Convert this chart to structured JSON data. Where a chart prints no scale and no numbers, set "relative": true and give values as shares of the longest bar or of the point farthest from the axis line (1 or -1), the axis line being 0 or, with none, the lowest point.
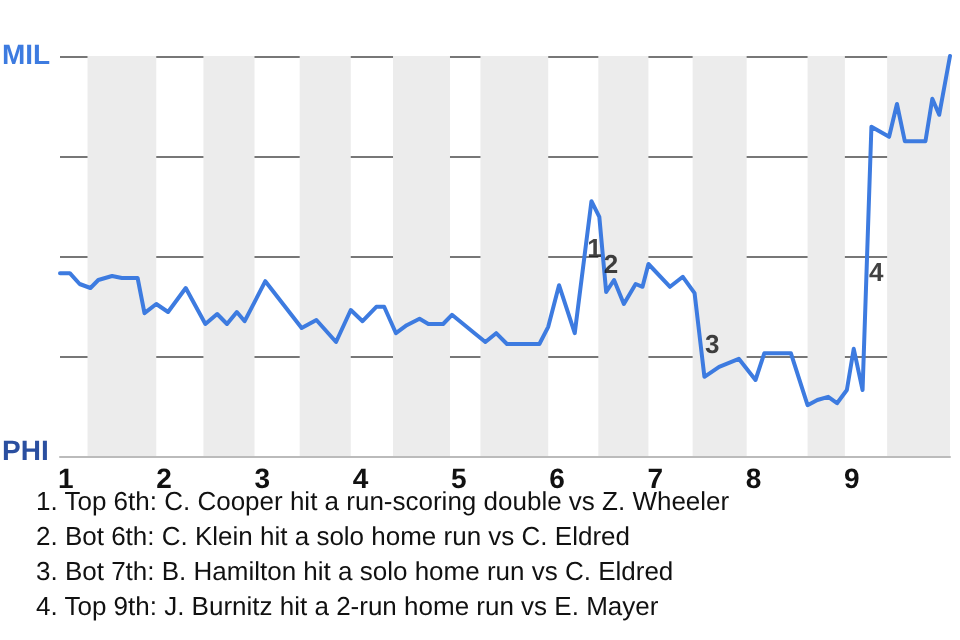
{
  "chart_data": {
    "type": "line",
    "relative": true,
    "x": [
      0.94,
      1.04,
      1.14,
      1.25,
      1.33,
      1.47,
      1.57,
      1.73,
      1.8,
      1.92,
      2.04,
      2.22,
      2.42,
      2.54,
      2.64,
      2.74,
      2.82,
      3.03,
      3.4,
      3.55,
      3.75,
      3.9,
      4.02,
      4.16,
      4.24,
      4.36,
      4.47,
      4.6,
      4.69,
      4.84,
      4.93,
      5.16,
      5.27,
      5.38,
      5.49,
      5.69,
      5.82,
      5.91,
      6.02,
      6.18,
      6.35,
      6.43,
      6.5,
      6.58,
      6.68,
      6.8,
      6.87,
      6.93,
      7.15,
      7.28,
      7.4,
      7.5,
      7.65,
      7.85,
      8.02,
      8.11,
      8.38,
      8.55,
      8.65,
      8.76,
      8.85,
      8.95,
      9.02,
      9.11,
      9.2,
      9.38,
      9.46,
      9.54,
      9.75,
      9.82,
      9.89,
      10
    ],
    "series": [
      {
        "color": "#3d7be0",
        "values": [
          0.457,
          0.457,
          0.43,
          0.42,
          0.44,
          0.45,
          0.445,
          0.445,
          0.357,
          0.38,
          0.36,
          0.42,
          0.33,
          0.355,
          0.33,
          0.36,
          0.337,
          0.437,
          0.32,
          0.34,
          0.285,
          0.365,
          0.337,
          0.373,
          0.373,
          0.307,
          0.327,
          0.343,
          0.33,
          0.33,
          0.353,
          0.307,
          0.285,
          0.307,
          0.28,
          0.28,
          0.28,
          0.323,
          0.427,
          0.307,
          0.637,
          0.598,
          0.41,
          0.44,
          0.38,
          0.43,
          0.423,
          0.48,
          0.423,
          0.448,
          0.407,
          0.198,
          0.223,
          0.243,
          0.19,
          0.257,
          0.257,
          0.127,
          0.14,
          0.148,
          0.132,
          0.165,
          0.268,
          0.165,
          0.823,
          0.798,
          0.88,
          0.787,
          0.787,
          0.893,
          0.853,
          1
        ]
      }
    ],
    "xlim": [
      0.94,
      10
    ],
    "xticks": [
      1,
      2,
      3,
      4,
      5,
      6,
      7,
      8,
      9
    ],
    "tick_labels": "x",
    "grid": "y",
    "marker": "none",
    "line_style": "solid",
    "bands": [
      {
        "axis": "x",
        "from": 1.22,
        "to": 1.92,
        "color": "#ececec"
      },
      {
        "axis": "x",
        "from": 2.4,
        "to": 2.92,
        "color": "#ececec"
      },
      {
        "axis": "x",
        "from": 3.38,
        "to": 3.9,
        "color": "#ececec"
      },
      {
        "axis": "x",
        "from": 4.33,
        "to": 4.91,
        "color": "#ececec"
      },
      {
        "axis": "x",
        "from": 5.22,
        "to": 5.91,
        "color": "#ececec"
      },
      {
        "axis": "x",
        "from": 6.42,
        "to": 6.93,
        "color": "#ececec"
      },
      {
        "axis": "x",
        "from": 7.38,
        "to": 7.93,
        "color": "#ececec"
      },
      {
        "axis": "x",
        "from": 8.55,
        "to": 8.93,
        "color": "#ececec"
      },
      {
        "axis": "x",
        "from": 9.36,
        "to": 10,
        "color": "#ececec"
      }
    ],
    "annotations": [
      "MIL",
      "PHI",
      {
        "text": "1",
        "x": 6.38,
        "y": 0.52
      },
      {
        "text": "2",
        "x": 6.55,
        "y": 0.48
      },
      {
        "text": "3",
        "x": 7.58,
        "y": 0.28
      },
      {
        "text": "4",
        "x": 9.25,
        "y": 0.46
      },
      "1. Top 6th: C. Cooper hit a run-scoring double vs Z. Wheeler",
      "2. Bot 6th: C. Klein hit a solo home run vs C. Eldred",
      "3. Bot 7th: B. Hamilton hit a solo home run vs C. Eldred",
      "4. Top 9th: J. Burnitz hit a 2-run home run vs E. Mayer"
    ]
  }
}
